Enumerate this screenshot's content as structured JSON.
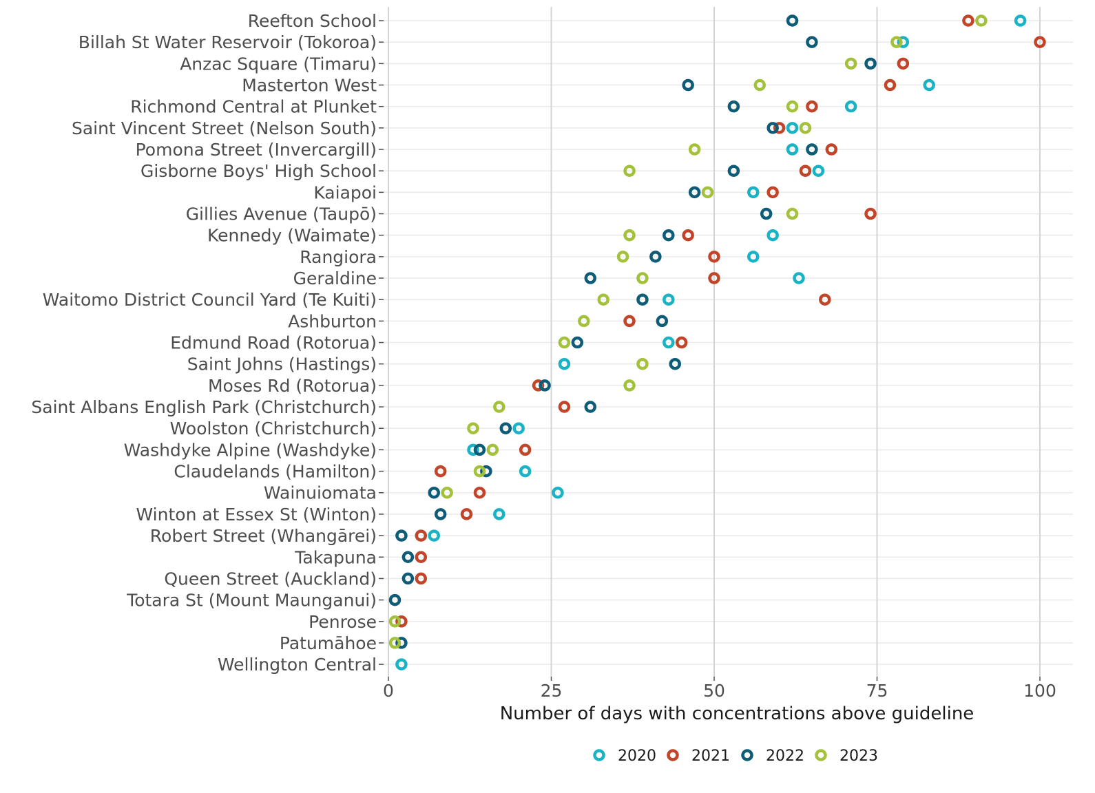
{
  "chart_data": {
    "type": "scatter",
    "title": "",
    "xlabel": "Number of days with concentrations above guideline",
    "ylabel": "",
    "xlim": [
      0,
      100
    ],
    "xticks": [
      0,
      25,
      50,
      75,
      100
    ],
    "grid": true,
    "legend_position": "bottom",
    "series": [
      {
        "name": "2020",
        "color": "#1ab3c6"
      },
      {
        "name": "2021",
        "color": "#c2452a"
      },
      {
        "name": "2022",
        "color": "#0f5c78"
      },
      {
        "name": "2023",
        "color": "#a3c13a"
      }
    ],
    "sites": [
      {
        "name": "Reefton School",
        "values": {
          "2020": 97,
          "2021": 89,
          "2022": 62,
          "2023": 91
        }
      },
      {
        "name": "Billah St Water Reservoir (Tokoroa)",
        "values": {
          "2020": 79,
          "2021": 100,
          "2022": 65,
          "2023": 78
        }
      },
      {
        "name": "Anzac Square (Timaru)",
        "values": {
          "2020": null,
          "2021": 79,
          "2022": 74,
          "2023": 71
        }
      },
      {
        "name": "Masterton West",
        "values": {
          "2020": 83,
          "2021": 77,
          "2022": 46,
          "2023": 57
        }
      },
      {
        "name": "Richmond Central at Plunket",
        "values": {
          "2020": 71,
          "2021": 65,
          "2022": 53,
          "2023": 62
        }
      },
      {
        "name": "Saint Vincent Street (Nelson South)",
        "values": {
          "2020": 62,
          "2021": 60,
          "2022": 59,
          "2023": 64
        }
      },
      {
        "name": "Pomona Street (Invercargill)",
        "values": {
          "2020": 62,
          "2021": 68,
          "2022": 65,
          "2023": 47
        }
      },
      {
        "name": "Gisborne Boys' High School",
        "values": {
          "2020": 66,
          "2021": 64,
          "2022": 53,
          "2023": 37
        }
      },
      {
        "name": "Kaiapoi",
        "values": {
          "2020": 56,
          "2021": 59,
          "2022": 47,
          "2023": 49
        }
      },
      {
        "name": "Gillies Avenue (Taupō)",
        "values": {
          "2020": null,
          "2021": 74,
          "2022": 58,
          "2023": 62
        }
      },
      {
        "name": "Kennedy (Waimate)",
        "values": {
          "2020": 59,
          "2021": 46,
          "2022": 43,
          "2023": 37
        }
      },
      {
        "name": "Rangiora",
        "values": {
          "2020": 56,
          "2021": 50,
          "2022": 41,
          "2023": 36
        }
      },
      {
        "name": "Geraldine",
        "values": {
          "2020": 63,
          "2021": 50,
          "2022": 31,
          "2023": 39
        }
      },
      {
        "name": "Waitomo District Council Yard (Te Kuiti)",
        "values": {
          "2020": 43,
          "2021": 67,
          "2022": 39,
          "2023": 33
        }
      },
      {
        "name": "Ashburton",
        "values": {
          "2020": null,
          "2021": 37,
          "2022": 42,
          "2023": 30
        }
      },
      {
        "name": "Edmund Road (Rotorua)",
        "values": {
          "2020": 43,
          "2021": 45,
          "2022": 29,
          "2023": 27
        }
      },
      {
        "name": "Saint Johns (Hastings)",
        "values": {
          "2020": 27,
          "2021": null,
          "2022": 44,
          "2023": 39
        }
      },
      {
        "name": "Moses Rd (Rotorua)",
        "values": {
          "2020": null,
          "2021": 23,
          "2022": 24,
          "2023": 37
        }
      },
      {
        "name": "Saint Albans English Park (Christchurch)",
        "values": {
          "2020": null,
          "2021": 27,
          "2022": 31,
          "2023": 17
        }
      },
      {
        "name": "Woolston (Christchurch)",
        "values": {
          "2020": 20,
          "2021": null,
          "2022": 18,
          "2023": 13
        }
      },
      {
        "name": "Washdyke Alpine (Washdyke)",
        "values": {
          "2020": 13,
          "2021": 21,
          "2022": 14,
          "2023": 16
        }
      },
      {
        "name": "Claudelands (Hamilton)",
        "values": {
          "2020": 21,
          "2021": 8,
          "2022": 15,
          "2023": 14
        }
      },
      {
        "name": "Wainuiomata",
        "values": {
          "2020": 26,
          "2021": 14,
          "2022": 7,
          "2023": 9
        }
      },
      {
        "name": "Winton at Essex St (Winton)",
        "values": {
          "2020": 17,
          "2021": 12,
          "2022": 8,
          "2023": null
        }
      },
      {
        "name": "Robert Street (Whangārei)",
        "values": {
          "2020": 7,
          "2021": 5,
          "2022": 2,
          "2023": null
        }
      },
      {
        "name": "Takapuna",
        "values": {
          "2020": null,
          "2021": 5,
          "2022": 3,
          "2023": null
        }
      },
      {
        "name": "Queen Street (Auckland)",
        "values": {
          "2020": null,
          "2021": 5,
          "2022": 3,
          "2023": null
        }
      },
      {
        "name": "Totara St (Mount Maunganui)",
        "values": {
          "2020": null,
          "2021": null,
          "2022": 1,
          "2023": null
        }
      },
      {
        "name": "Penrose",
        "values": {
          "2020": null,
          "2021": 2,
          "2022": null,
          "2023": 1
        }
      },
      {
        "name": "Patumāhoe",
        "values": {
          "2020": null,
          "2021": null,
          "2022": 2,
          "2023": 1
        }
      },
      {
        "name": "Wellington Central",
        "values": {
          "2020": 2,
          "2021": null,
          "2022": null,
          "2023": null
        }
      }
    ]
  }
}
